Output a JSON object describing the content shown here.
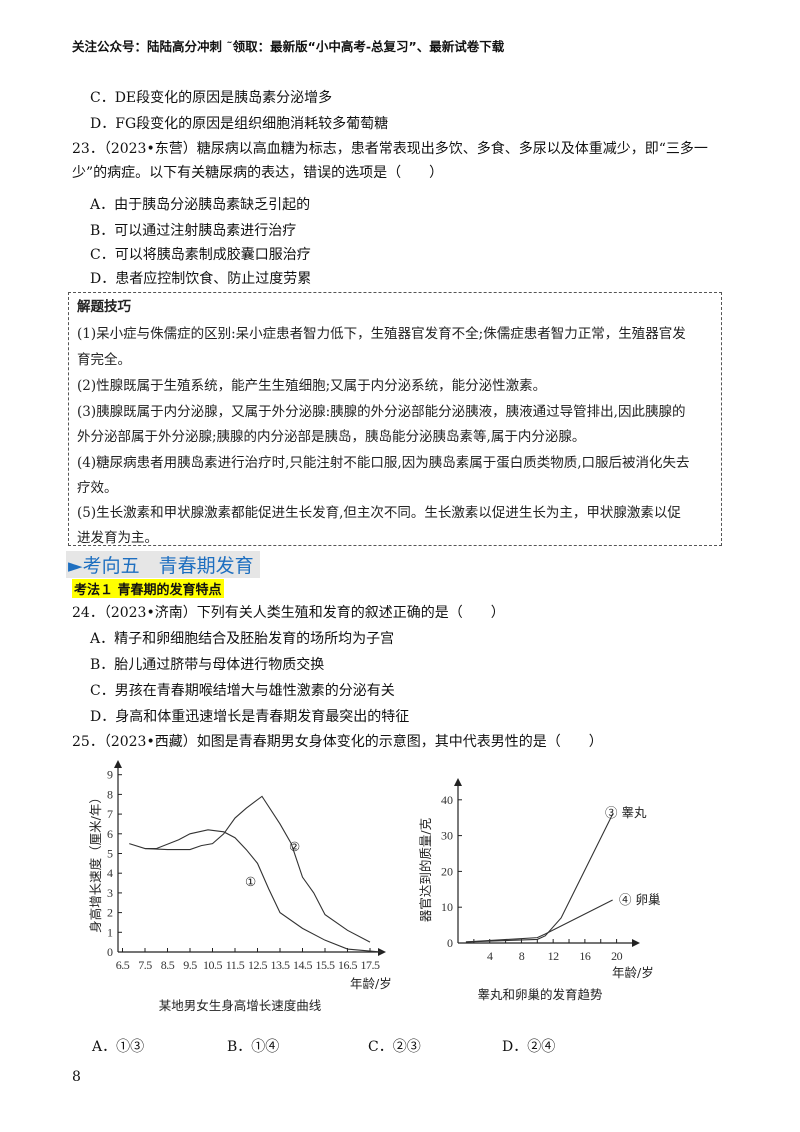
{
  "header": "关注公众号：陆陆高分冲刺  ˜领取：最新版“小中高考-总复习”、最新试卷下载",
  "prev_options": [
    "C．DE段变化的原因是胰岛素分泌增多",
    "D．FG段变化的原因是组织细胞消耗较多葡萄糖"
  ],
  "q23": {
    "stem1": "23．（2023•东营）糖尿病以高血糖为标志，患者常表现出多饮、多食、多尿以及体重减少，即“三多一",
    "stem2": "少”的病症。以下有关糖尿病的表达，错误的选项是（　　）",
    "options": [
      "A．由于胰岛分泌胰岛素缺乏引起的",
      "B．可以通过注射胰岛素进行治疗",
      "C．可以将胰岛素制成胶囊口服治疗",
      "D．患者应控制饮食、防止过度劳累"
    ]
  },
  "tips": {
    "title": "解题技巧",
    "lines": [
      "(1)呆小症与侏儒症的区别:呆小症患者智力低下，生殖器官发育不全;侏儒症患者智力正常，生殖器官发",
      "育完全。",
      "(2)性腺既属于生殖系统，能产生生殖细胞;又属于内分泌系统，能分泌性激素。",
      "(3)胰腺既属于内分泌腺，又属于外分泌腺:胰腺的外分泌部能分泌胰液，胰液通过导管排出,因此胰腺的",
      "外分泌部属于外分泌腺;胰腺的内分泌部是胰岛，胰岛能分泌胰岛素等,属于内分泌腺。",
      "(4)糖尿病患者用胰岛素进行治疗时,只能注射不能口服,因为胰岛素属于蛋白质类物质,口服后被消化失去",
      "疗效。",
      "(5)生长激素和甲状腺激素都能促进生长发育,但主次不同。生长激素以促进生长为主，甲状腺激素以促",
      "进发育为主。"
    ]
  },
  "section": "►考向五　青春期发育",
  "kaofa": "考法１ 青春期的发育特点",
  "q24": {
    "stem": "24．（2023•济南）下列有关人类生殖和发育的叙述正确的是（　　）",
    "options": [
      "A．精子和卵细胞结合及胚胎发育的场所均为子宫",
      "B．胎儿通过脐带与母体进行物质交换",
      "C．男孩在青春期喉结增大与雄性激素的分泌有关",
      "D．身高和体重迅速增长是青春期发育最突出的特征"
    ]
  },
  "q25": {
    "stem": "25．（2023•西藏）如图是青春期男女身体变化的示意图，其中代表男性的是（　　）",
    "options": [
      "A．①③",
      "B．①④",
      "C．②③",
      "D．②④"
    ]
  },
  "chart_data": [
    {
      "type": "line",
      "title": "某地男女生身高增长速度曲线",
      "xlabel": "年龄/岁",
      "ylabel": "身高增长速度（厘米/年）",
      "xticks": [
        "6.5",
        "7.5",
        "8.5",
        "9.5",
        "10.5",
        "11.5",
        "12.5",
        "13.5",
        "14.5",
        "15.5",
        "16.5",
        "17.5"
      ],
      "yticks": [
        "0",
        "1",
        "2",
        "3",
        "4",
        "5",
        "6",
        "7",
        "8",
        "9"
      ],
      "ylim": [
        0,
        9
      ],
      "xlim": [
        6.5,
        18
      ],
      "series": [
        {
          "name": "①",
          "points": [
            [
              6.8,
              5.5
            ],
            [
              7.5,
              5.25
            ],
            [
              8,
              5.25
            ],
            [
              9,
              5.7
            ],
            [
              9.5,
              6.0
            ],
            [
              10.3,
              6.2
            ],
            [
              11,
              6.1
            ],
            [
              11.5,
              5.8
            ],
            [
              12,
              5.2
            ],
            [
              12.5,
              4.5
            ],
            [
              13,
              3.2
            ],
            [
              13.5,
              2
            ],
            [
              14.5,
              1.2
            ],
            [
              15.5,
              0.6
            ],
            [
              16.5,
              0.15
            ],
            [
              17.5,
              0.05
            ],
            [
              18,
              0
            ]
          ]
        },
        {
          "name": "②",
          "points": [
            [
              7.5,
              5.25
            ],
            [
              8.5,
              5.2
            ],
            [
              9.5,
              5.2
            ],
            [
              10,
              5.4
            ],
            [
              10.5,
              5.5
            ],
            [
              11,
              6.0
            ],
            [
              11.5,
              6.8
            ],
            [
              12,
              7.3
            ],
            [
              12.7,
              7.9
            ],
            [
              13.5,
              6.5
            ],
            [
              14,
              5.5
            ],
            [
              14.5,
              3.8
            ],
            [
              15,
              3
            ],
            [
              15.5,
              1.9
            ],
            [
              16.5,
              1.1
            ],
            [
              17.5,
              0.5
            ]
          ]
        }
      ]
    },
    {
      "type": "line",
      "title": "睾丸和卵巢的发育趋势",
      "xlabel": "年龄/岁",
      "ylabel": "器官达到的质量/克",
      "xticks": [
        "4",
        "8",
        "12",
        "16",
        "20"
      ],
      "yticks": [
        "0",
        "10",
        "20",
        "30",
        "40"
      ],
      "ylim": [
        0,
        40
      ],
      "xlim": [
        0,
        22
      ],
      "series": [
        {
          "name": "③ 睾丸",
          "points": [
            [
              1,
              0.3
            ],
            [
              10,
              1
            ],
            [
              11,
              2
            ],
            [
              13,
              7
            ],
            [
              19.5,
              36
            ]
          ]
        },
        {
          "name": "④ 卵巢",
          "points": [
            [
              1,
              0.3
            ],
            [
              10,
              1.5
            ],
            [
              11,
              2.5
            ],
            [
              19.5,
              12
            ]
          ]
        }
      ]
    }
  ],
  "page_number": "8"
}
